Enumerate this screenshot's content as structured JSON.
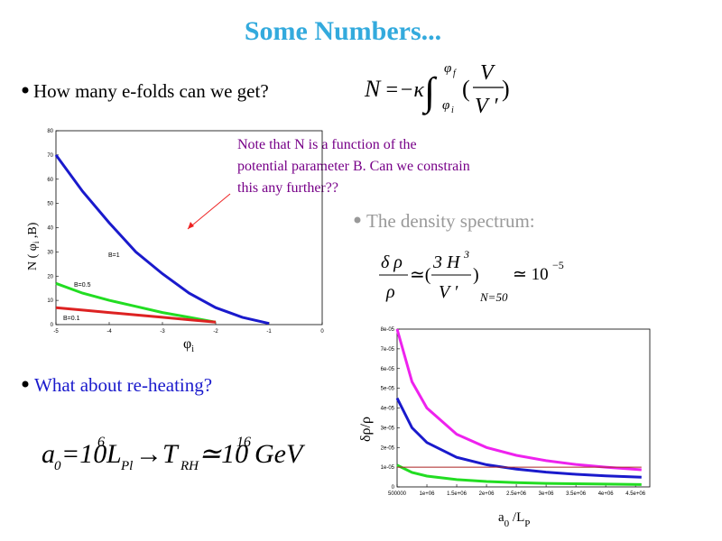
{
  "slide": {
    "title": "Some Numbers...",
    "bullet_efolds": "How many e-folds can we get?",
    "eq_efolds": [
      "N",
      "=−κ",
      "∫",
      "φ",
      "f",
      "φ",
      "i",
      "(",
      "V",
      "V ′",
      ")"
    ],
    "note": [
      "Note that N is a function of the",
      "potential parameter B. Can we constrain",
      "this any further??"
    ],
    "bullet_density": "The density spectrum:",
    "eq_density": [
      "δ ρ",
      "ρ",
      "≃(",
      "3 H",
      "3",
      "V ′",
      ")",
      "N=50",
      "≃ 10",
      "−5"
    ],
    "bullet_reheat": "What about re-heating?",
    "eq_reheat": [
      "a",
      "0",
      "=10",
      "6",
      "L",
      "Pl",
      "→T",
      "RH",
      "≃10",
      "16",
      "GeV"
    ]
  },
  "chart_data": [
    {
      "type": "line",
      "xlabel": [
        "φ",
        "i"
      ],
      "ylabel": [
        "N ( φ",
        "i",
        " ,B)"
      ],
      "x": [
        -5,
        -4.5,
        -4,
        -3.5,
        -3,
        -2.5,
        -2,
        -1.5,
        -1
      ],
      "series": [
        {
          "name": "B=1",
          "color": "#1a1acc",
          "values": [
            70,
            55,
            42,
            30,
            21,
            13,
            7,
            3,
            0.5
          ]
        },
        {
          "name": "B=0.5",
          "color": "#22dd22",
          "values": [
            17,
            13,
            10,
            7.5,
            5,
            3,
            1,
            null,
            null
          ]
        },
        {
          "name": "B=0.1",
          "color": "#dd2222",
          "values": [
            7,
            6,
            5,
            4,
            3,
            2,
            1,
            null,
            null
          ]
        }
      ],
      "xlim": [
        -5,
        0
      ],
      "ylim": [
        0,
        80
      ],
      "xticks": [
        -5,
        -4,
        -3,
        -2,
        -1,
        0
      ],
      "yticks": [
        0,
        10,
        20,
        30,
        40,
        50,
        60,
        70,
        80
      ]
    },
    {
      "type": "line",
      "xlabel": [
        "a",
        "0",
        " /L",
        "P"
      ],
      "ylabel": "δρ/ρ",
      "x": [
        500000,
        750000,
        1000000,
        1500000,
        2000000,
        2500000,
        3000000,
        3500000,
        4000000,
        4600000
      ],
      "series": [
        {
          "color": "#ee22ee",
          "values": [
            8e-05,
            5.33e-05,
            4e-05,
            2.67e-05,
            2e-05,
            1.6e-05,
            1.33e-05,
            1.14e-05,
            1e-05,
            8.7e-06
          ]
        },
        {
          "color": "#1a1acc",
          "values": [
            4.5e-05,
            3e-05,
            2.25e-05,
            1.5e-05,
            1.125e-05,
            9e-06,
            7.5e-06,
            6.4e-06,
            5.6e-06,
            4.9e-06
          ]
        },
        {
          "color": "#22dd22",
          "values": [
            1.1e-05,
            7.3e-06,
            5.5e-06,
            3.7e-06,
            2.75e-06,
            2.2e-06,
            1.8e-06,
            1.6e-06,
            1.4e-06,
            1.2e-06
          ]
        },
        {
          "color": "#aa2222",
          "values": [
            1e-05,
            1e-05,
            1e-05,
            1e-05,
            1e-05,
            1e-05,
            1e-05,
            1e-05,
            1e-05,
            1e-05
          ]
        }
      ],
      "xlim": [
        500000,
        4740000
      ],
      "ylim": [
        0,
        8e-05
      ],
      "xticks": [
        500000,
        {
          "value": 1000000,
          "label": "1e+06"
        },
        {
          "value": 1500000,
          "label": "1.5e+06"
        },
        {
          "value": 2000000,
          "label": "2e+06"
        },
        {
          "value": 2500000,
          "label": "2.5e+06"
        },
        {
          "value": 3000000,
          "label": "3e+06"
        },
        {
          "value": 3500000,
          "label": "3.5e+06"
        },
        {
          "value": 4000000,
          "label": "4e+06"
        },
        {
          "value": 4500000,
          "label": "4.5e+06"
        }
      ],
      "yticks": [
        0,
        {
          "value": 1e-05,
          "label": "1e-05"
        },
        {
          "value": 2e-05,
          "label": "2e-05"
        },
        {
          "value": 3e-05,
          "label": "3e-05"
        },
        {
          "value": 4e-05,
          "label": "4e-05"
        },
        {
          "value": 5e-05,
          "label": "5e-05"
        },
        {
          "value": 6e-05,
          "label": "6e-05"
        },
        {
          "value": 7e-05,
          "label": "7e-05"
        },
        {
          "value": 8e-05,
          "label": "8e-05"
        }
      ]
    }
  ]
}
